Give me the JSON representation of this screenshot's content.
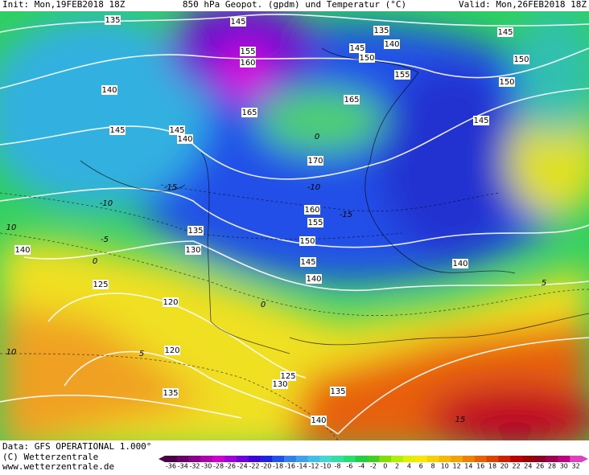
{
  "header": {
    "init": "Init: Mon,19FEB2018 18Z",
    "title": "850 hPa Geopot. (gpdm) und Temperatur (°C)",
    "valid": "Valid: Mon,26FEB2018 18Z"
  },
  "contour_labels": [
    135,
    145,
    155,
    160,
    165,
    135,
    140,
    145,
    150,
    155,
    145,
    150,
    150,
    145,
    165,
    170,
    140,
    145,
    145,
    140,
    160,
    155,
    150,
    145,
    140,
    140,
    135,
    130,
    140,
    125,
    120,
    120,
    135,
    125,
    130,
    135,
    140
  ],
  "temperature_labels": [
    10,
    10,
    5,
    0,
    -5,
    -10,
    -15,
    0,
    -10,
    -15,
    5,
    15,
    0
  ],
  "footer": {
    "data": "Data: GFS OPERATIONAL 1.000°",
    "copyright": "(C) Wetterzentrale",
    "url": "www.wetterzentrale.de"
  },
  "colorbar": {
    "ticks": [
      -36,
      -34,
      -32,
      -30,
      -28,
      -26,
      -24,
      -22,
      -20,
      -18,
      -16,
      -14,
      -12,
      -10,
      -8,
      -6,
      -4,
      -2,
      0,
      2,
      4,
      6,
      8,
      10,
      12,
      14,
      16,
      18,
      20,
      22,
      24,
      26,
      28,
      30,
      32
    ],
    "colors": [
      "#4b0047",
      "#6a006a",
      "#8c008c",
      "#b000b0",
      "#d000d0",
      "#a000e0",
      "#7000e0",
      "#4000e0",
      "#2020e8",
      "#2050f0",
      "#3080f0",
      "#40a0f0",
      "#40c0e8",
      "#40d8d0",
      "#30e0a0",
      "#20e070",
      "#20d040",
      "#40d020",
      "#80e000",
      "#b0f000",
      "#e0f000",
      "#f8e800",
      "#f8d000",
      "#f8b800",
      "#f8a000",
      "#f08000",
      "#e86000",
      "#e04000",
      "#d02000",
      "#c00000",
      "#a00000",
      "#900020",
      "#a00050",
      "#c00080",
      "#e040c0"
    ]
  }
}
